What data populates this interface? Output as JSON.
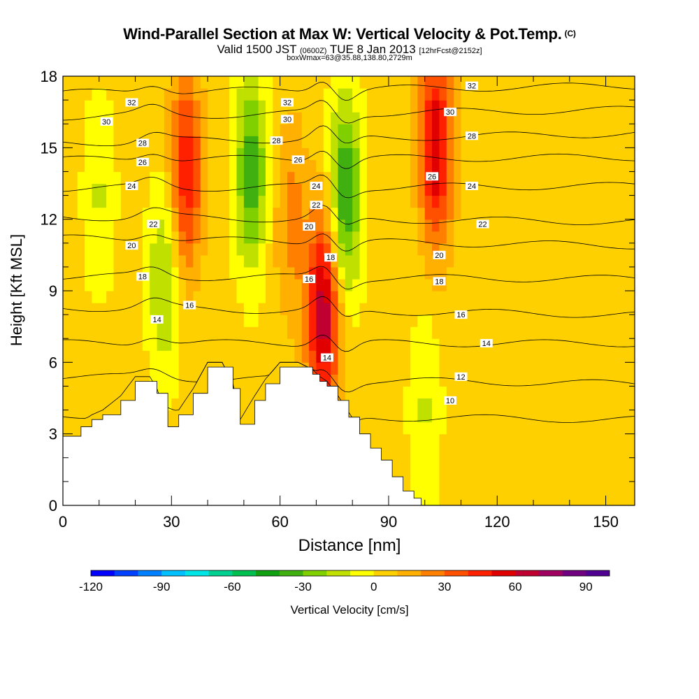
{
  "titles": {
    "main": "Wind-Parallel Section at Max W: Vertical Velocity & Pot.Temp.",
    "mark": "(C)",
    "valid_prefix": "Valid 1500 JST",
    "valid_utc": "(0600Z)",
    "valid_date": "TUE 8 Jan 2013",
    "forecast": "[12hrFcst@2152z]",
    "box_info": "boxWmax=63@35.88,138.80,2729m"
  },
  "chart_data": {
    "type": "heatmap",
    "xlabel": "Distance [nm]",
    "ylabel": "Height [Kft MSL]",
    "xlim": [
      0,
      158
    ],
    "ylim": [
      0,
      18
    ],
    "x_ticks": [
      0,
      30,
      60,
      90,
      120,
      150
    ],
    "y_ticks": [
      0,
      3,
      6,
      9,
      12,
      15,
      18
    ],
    "grid": false,
    "colorbar": {
      "label": "Vertical Velocity [cm/s]",
      "placement": "bottom",
      "range": [
        -120,
        100
      ],
      "step": 10,
      "tick_values": [
        -120,
        -90,
        -60,
        -30,
        0,
        30,
        60,
        90
      ],
      "colors": [
        "#0000ff",
        "#0040ff",
        "#0080ff",
        "#00c0ff",
        "#00e6e6",
        "#00d090",
        "#00c050",
        "#10a010",
        "#40b010",
        "#80d000",
        "#c0e000",
        "#ffff00",
        "#ffd000",
        "#ffb000",
        "#ff8000",
        "#ff5000",
        "#ff2000",
        "#e00000",
        "#c00030",
        "#a00060",
        "#700080",
        "#500090"
      ]
    },
    "terrain_profile": {
      "x": [
        0,
        5,
        8,
        11,
        16,
        20,
        24,
        26,
        29,
        32,
        36,
        40,
        44,
        47,
        49,
        53,
        56,
        60,
        65,
        69,
        71,
        73,
        76,
        79,
        82,
        85,
        88,
        91,
        94,
        97
      ],
      "y": [
        2.9,
        3.3,
        3.6,
        3.8,
        4.4,
        5.2,
        5.2,
        4.7,
        3.3,
        3.8,
        4.7,
        5.8,
        5.8,
        4.9,
        3.4,
        4.4,
        5.1,
        5.8,
        5.8,
        5.5,
        5.2,
        5.0,
        4.4,
        3.7,
        3.0,
        2.4,
        1.9,
        1.2,
        0.6,
        0.3
      ]
    },
    "vertical_velocity_cells": [
      {
        "x": 28,
        "y": 9.5,
        "w": -25
      },
      {
        "x": 34,
        "y": 14,
        "w": 45
      },
      {
        "x": 52,
        "y": 14,
        "w": -40
      },
      {
        "x": 63,
        "y": 12,
        "w": 20
      },
      {
        "x": 72,
        "y": 8,
        "w": 63
      },
      {
        "x": 78,
        "y": 13,
        "w": -45
      },
      {
        "x": 103,
        "y": 15,
        "w": 55
      },
      {
        "x": 100,
        "y": 4,
        "w": -15
      },
      {
        "x": 10,
        "y": 13,
        "w": -15
      }
    ],
    "theta_contours": [
      {
        "value": 10,
        "y_left": 3.8,
        "y_right": 3.6
      },
      {
        "value": 12,
        "y_left": 5.4,
        "y_right": 5.1
      },
      {
        "value": 14,
        "y_left": 6.8,
        "y_right": 6.8
      },
      {
        "value": 16,
        "y_left": 8.3,
        "y_right": 8.0
      },
      {
        "value": 18,
        "y_left": 9.6,
        "y_right": 9.5
      },
      {
        "value": 20,
        "y_left": 11.2,
        "y_right": 10.9
      },
      {
        "value": 22,
        "y_left": 12.1,
        "y_right": 11.9
      },
      {
        "value": 24,
        "y_left": 13.3,
        "y_right": 13.4
      },
      {
        "value": 26,
        "y_left": 14.5,
        "y_right": 14.6
      },
      {
        "value": 28,
        "y_left": 15.2,
        "y_right": 15.6
      },
      {
        "value": 30,
        "y_left": 16.3,
        "y_right": 16.6
      },
      {
        "value": 32,
        "y_left": 17.3,
        "y_right": 17.6
      }
    ],
    "contour_labels": [
      {
        "text": "32",
        "x": 19,
        "y": 16.9
      },
      {
        "text": "30",
        "x": 12,
        "y": 16.1
      },
      {
        "text": "28",
        "x": 22,
        "y": 15.2
      },
      {
        "text": "26",
        "x": 22,
        "y": 14.4
      },
      {
        "text": "24",
        "x": 19,
        "y": 13.4
      },
      {
        "text": "22",
        "x": 25,
        "y": 11.8
      },
      {
        "text": "20",
        "x": 19,
        "y": 10.9
      },
      {
        "text": "18",
        "x": 22,
        "y": 9.6
      },
      {
        "text": "16",
        "x": 35,
        "y": 8.4
      },
      {
        "text": "14",
        "x": 26,
        "y": 7.8
      },
      {
        "text": "32",
        "x": 62,
        "y": 16.9
      },
      {
        "text": "30",
        "x": 62,
        "y": 16.2
      },
      {
        "text": "28",
        "x": 59,
        "y": 15.3
      },
      {
        "text": "26",
        "x": 65,
        "y": 14.5
      },
      {
        "text": "24",
        "x": 70,
        "y": 13.4
      },
      {
        "text": "22",
        "x": 70,
        "y": 12.6
      },
      {
        "text": "20",
        "x": 68,
        "y": 11.7
      },
      {
        "text": "18",
        "x": 74,
        "y": 10.4
      },
      {
        "text": "16",
        "x": 68,
        "y": 9.5
      },
      {
        "text": "14",
        "x": 73,
        "y": 6.2
      },
      {
        "text": "32",
        "x": 113,
        "y": 17.6
      },
      {
        "text": "30",
        "x": 107,
        "y": 16.5
      },
      {
        "text": "28",
        "x": 113,
        "y": 15.5
      },
      {
        "text": "26",
        "x": 102,
        "y": 13.8
      },
      {
        "text": "24",
        "x": 113,
        "y": 13.4
      },
      {
        "text": "22",
        "x": 116,
        "y": 11.8
      },
      {
        "text": "20",
        "x": 104,
        "y": 10.5
      },
      {
        "text": "18",
        "x": 104,
        "y": 9.4
      },
      {
        "text": "16",
        "x": 110,
        "y": 8.0
      },
      {
        "text": "14",
        "x": 117,
        "y": 6.8
      },
      {
        "text": "12",
        "x": 110,
        "y": 5.4
      },
      {
        "text": "10",
        "x": 107,
        "y": 4.4
      }
    ]
  }
}
